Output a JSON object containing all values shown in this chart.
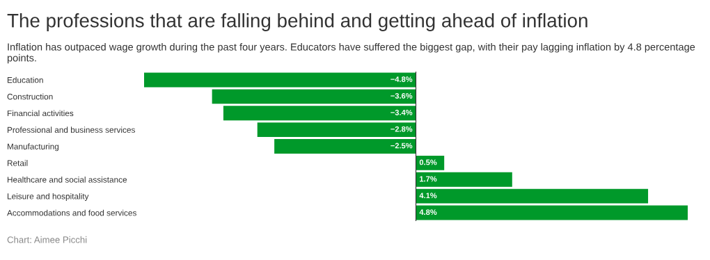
{
  "chart_data": {
    "type": "bar",
    "orientation": "horizontal",
    "title": "The professions that are falling behind and getting ahead of inflation",
    "subtitle": "Inflation has outpaced wage growth during the past four years. Educators have suffered the biggest gap, with their pay lagging inflation by 4.8 percentage points.",
    "categories": [
      "Education",
      "Construction",
      "Financial activities",
      "Professional and business services",
      "Manufacturing",
      "Retail",
      "Healthcare and social assistance",
      "Leisure and hospitality",
      "Accommodations and food services"
    ],
    "values": [
      -4.8,
      -3.6,
      -3.4,
      -2.8,
      -2.5,
      0.5,
      1.7,
      4.1,
      4.8
    ],
    "value_labels": [
      "−4.8%",
      "−3.6%",
      "−3.4%",
      "−2.8%",
      "−2.5%",
      "0.5%",
      "1.7%",
      "4.1%",
      "4.8%"
    ],
    "color": "#00992a",
    "xlim": [
      -4.8,
      4.8
    ],
    "tick_labels": "y",
    "grid": false,
    "legend": false,
    "annotations": [
      "Chart: Aimee Picchi"
    ]
  }
}
